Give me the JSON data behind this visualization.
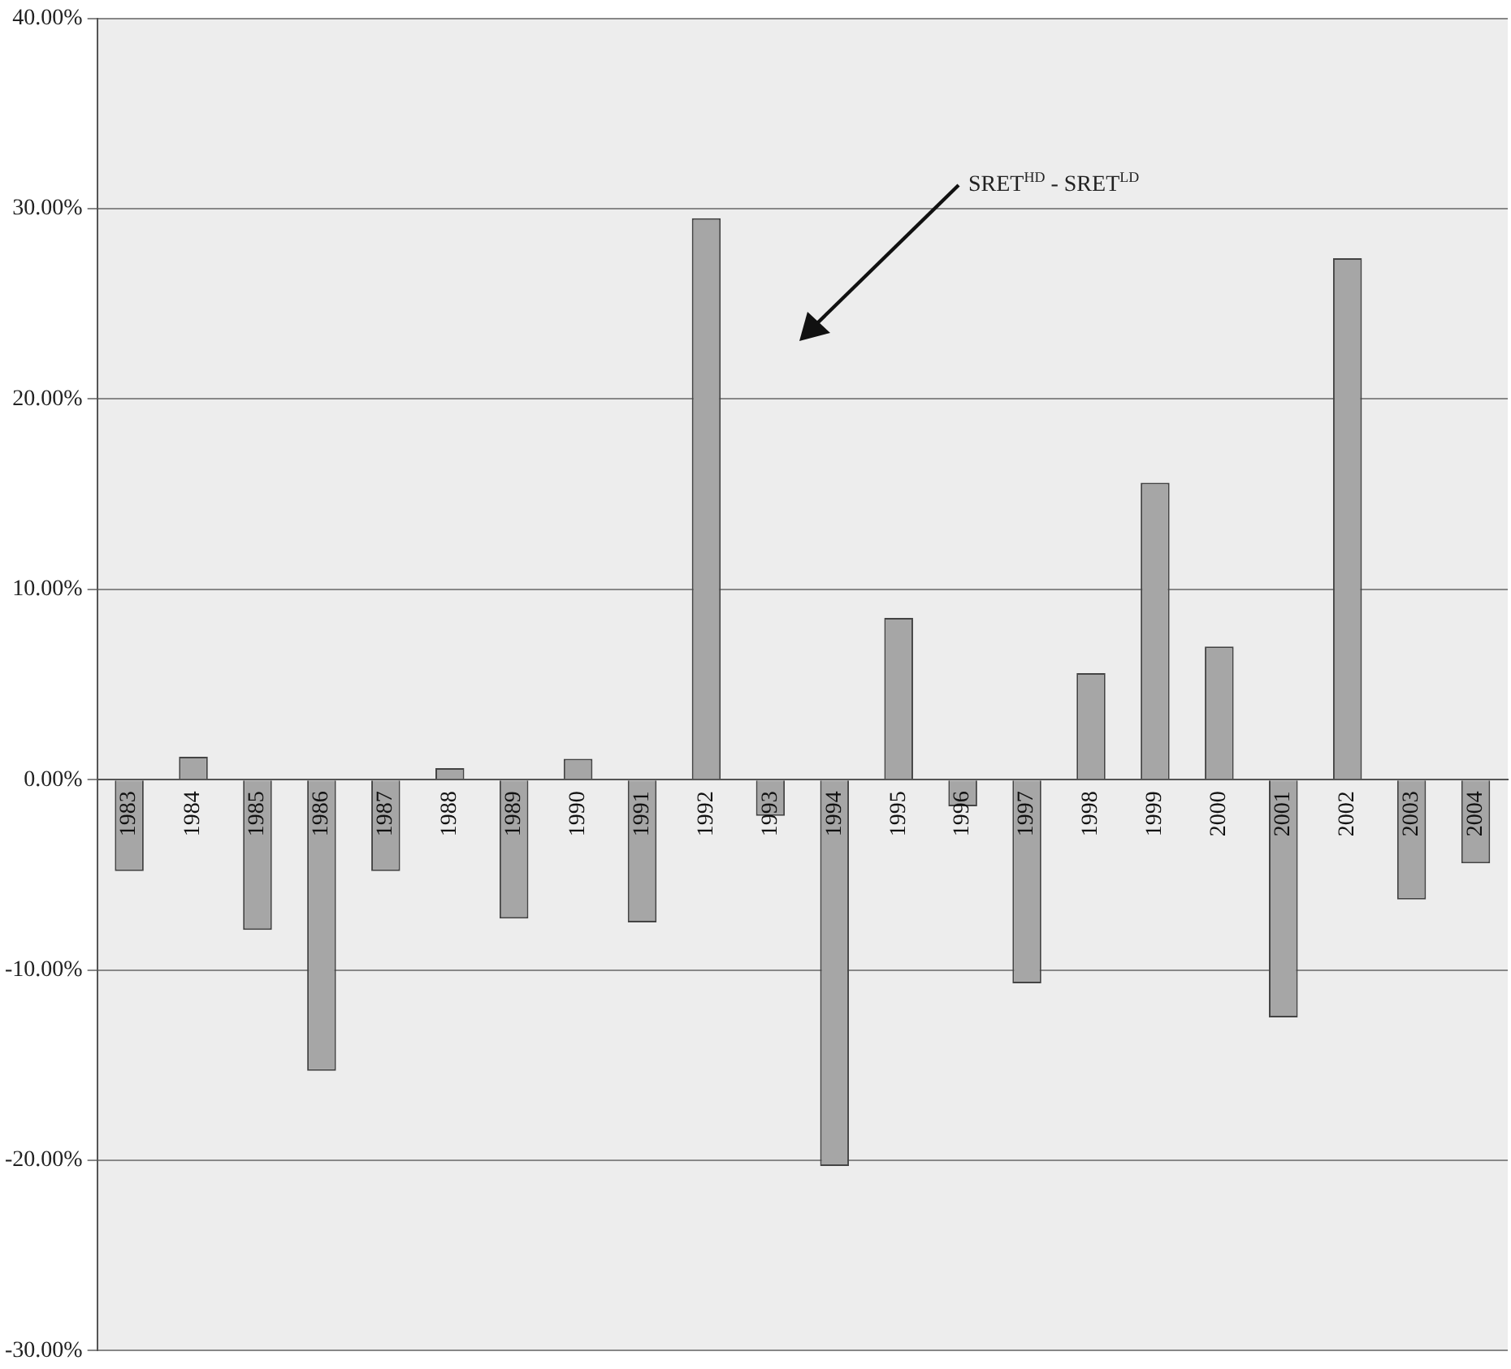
{
  "chart_data": {
    "type": "bar",
    "categories": [
      "1983",
      "1984",
      "1985",
      "1986",
      "1987",
      "1988",
      "1989",
      "1990",
      "1991",
      "1992",
      "1993",
      "1994",
      "1995",
      "1996",
      "1997",
      "1998",
      "1999",
      "2000",
      "2001",
      "2002",
      "2003",
      "2004"
    ],
    "values": [
      -4.8,
      1.2,
      -7.9,
      -15.3,
      -4.8,
      0.6,
      -7.3,
      1.1,
      -7.5,
      29.5,
      -1.9,
      -20.3,
      8.5,
      -1.4,
      -10.7,
      5.6,
      15.6,
      7.0,
      -12.5,
      27.4,
      -6.3,
      -4.4
    ],
    "color": "#a6a6a6",
    "ylim": [
      -30,
      40
    ],
    "yticks": [
      {
        "value": -30,
        "label": "-30.00%"
      },
      {
        "value": -20,
        "label": "-20.00%"
      },
      {
        "value": -10,
        "label": "-10.00%"
      },
      {
        "value": 0,
        "label": "0.00%"
      },
      {
        "value": 10,
        "label": "10.00%"
      },
      {
        "value": 20,
        "label": "20.00%"
      },
      {
        "value": 30,
        "label": "30.00%"
      },
      {
        "value": 40,
        "label": "40.00%"
      }
    ],
    "grid": "y",
    "legend": false,
    "annotations": [
      "SRET$^{HD}$ - SRET$^{LD}$"
    ]
  }
}
